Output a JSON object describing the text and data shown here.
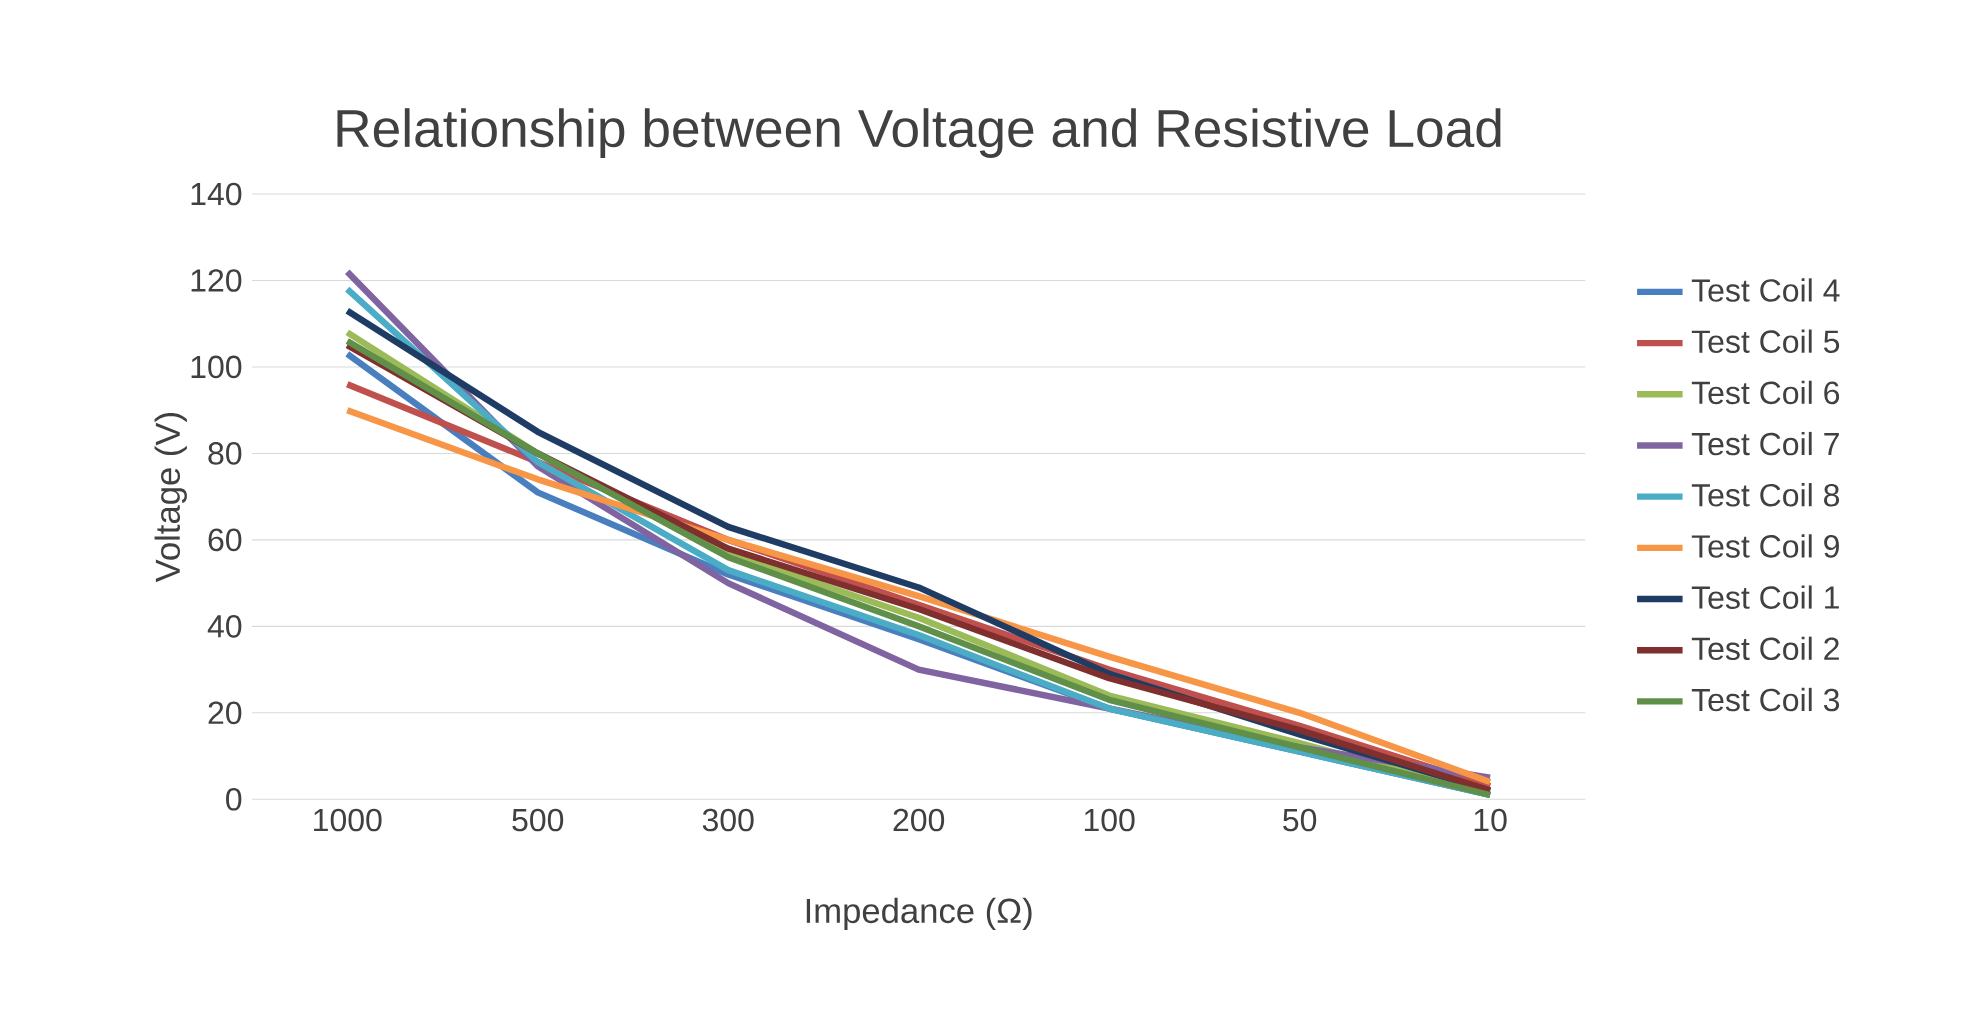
{
  "chart_data": {
    "type": "line",
    "title": "Relationship between Voltage and Resistive Load",
    "xlabel": "Impedance (Ω)",
    "ylabel": "Voltage (V)",
    "categories": [
      "1000",
      "500",
      "300",
      "200",
      "100",
      "50",
      "10"
    ],
    "ylim": [
      0,
      140
    ],
    "yticks": [
      0,
      20,
      40,
      60,
      80,
      100,
      120,
      140
    ],
    "grid": "y",
    "legend": "right",
    "marker": "none",
    "line_style": "solid",
    "series": [
      {
        "name": "Test Coil 4",
        "color": "#4a7fbf",
        "values": [
          103,
          71,
          52,
          37,
          21,
          11,
          1
        ]
      },
      {
        "name": "Test Coil 5",
        "color": "#c0504d",
        "values": [
          96,
          78,
          60,
          45,
          30,
          17,
          3
        ]
      },
      {
        "name": "Test Coil 6",
        "color": "#9bbb59",
        "values": [
          108,
          80,
          57,
          42,
          24,
          13,
          1
        ]
      },
      {
        "name": "Test Coil 7",
        "color": "#8064a2",
        "values": [
          122,
          77,
          50,
          30,
          21,
          12,
          5
        ]
      },
      {
        "name": "Test Coil 8",
        "color": "#4bacc6",
        "values": [
          118,
          78,
          53,
          38,
          21,
          11,
          1
        ]
      },
      {
        "name": "Test Coil 9",
        "color": "#f79646",
        "values": [
          90,
          74,
          60,
          47,
          33,
          20,
          4
        ]
      },
      {
        "name": "Test Coil 1",
        "color": "#1f3d64",
        "values": [
          113,
          85,
          63,
          49,
          29,
          15,
          2
        ]
      },
      {
        "name": "Test Coil 2",
        "color": "#7f2f2d",
        "values": [
          105,
          80,
          58,
          44,
          28,
          16,
          2
        ]
      },
      {
        "name": "Test Coil 3",
        "color": "#5f8f48",
        "values": [
          106,
          80,
          56,
          40,
          23,
          12,
          1
        ]
      }
    ]
  }
}
